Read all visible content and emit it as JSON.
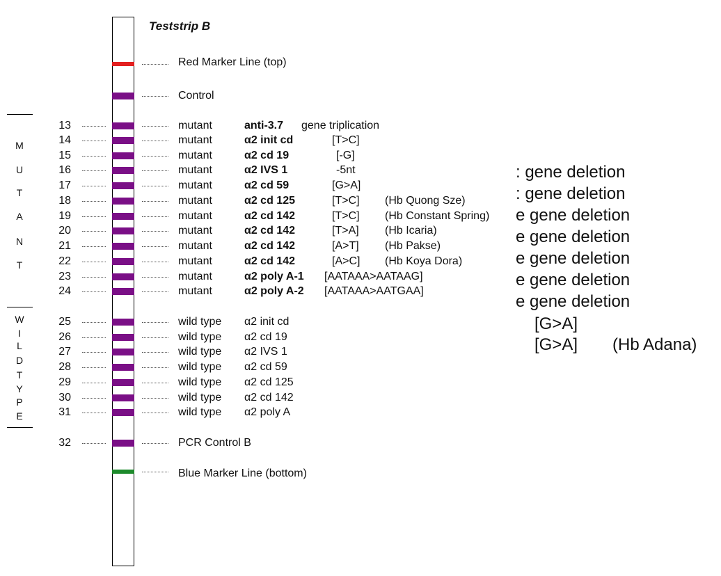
{
  "title": "Teststrip B",
  "colors": {
    "marker_red": "#e32020",
    "band_purple": "#7a0f86",
    "marker_green": "#1d8a2b"
  },
  "side": {
    "mutant_letters": [
      "M",
      "U",
      "T",
      "A",
      "N",
      "T"
    ],
    "wildtype_letters": [
      "W",
      "I",
      "L",
      "D",
      "T",
      "Y",
      "P",
      "E"
    ]
  },
  "marker_top": "Red Marker Line (top)",
  "control": "Control",
  "marker_bottom": "Blue Marker Line (bottom)",
  "mutants": [
    {
      "num": "13",
      "type": "mutant",
      "name": "anti-3.7",
      "change": "gene triplication",
      "hb": ""
    },
    {
      "num": "14",
      "type": "mutant",
      "name": "α2 init cd",
      "change": "[T>C]",
      "hb": ""
    },
    {
      "num": "15",
      "type": "mutant",
      "name": "α2 cd 19",
      "change": "[-G]",
      "hb": ""
    },
    {
      "num": "16",
      "type": "mutant",
      "name": "α2 IVS 1",
      "change": "-5nt",
      "hb": ""
    },
    {
      "num": "17",
      "type": "mutant",
      "name": "α2 cd 59",
      "change": "[G>A]",
      "hb": ""
    },
    {
      "num": "18",
      "type": "mutant",
      "name": "α2 cd 125",
      "change": "[T>C]",
      "hb": "(Hb Quong Sze)"
    },
    {
      "num": "19",
      "type": "mutant",
      "name": "α2 cd 142",
      "change": "[T>C]",
      "hb": "(Hb Constant Spring)"
    },
    {
      "num": "20",
      "type": "mutant",
      "name": "α2 cd 142",
      "change": "[T>A]",
      "hb": "(Hb Icaria)"
    },
    {
      "num": "21",
      "type": "mutant",
      "name": "α2 cd 142",
      "change": "[A>T]",
      "hb": "(Hb Pakse)"
    },
    {
      "num": "22",
      "type": "mutant",
      "name": "α2 cd 142",
      "change": "[A>C]",
      "hb": "(Hb Koya Dora)"
    },
    {
      "num": "23",
      "type": "mutant",
      "name": "α2 poly A-1",
      "change": "[AATAAA>AATAAG]",
      "hb": ""
    },
    {
      "num": "24",
      "type": "mutant",
      "name": "α2 poly A-2",
      "change": "[AATAAA>AATGAA]",
      "hb": ""
    }
  ],
  "wildtypes": [
    {
      "num": "25",
      "type": "wild type",
      "name": "α2 init cd"
    },
    {
      "num": "26",
      "type": "wild type",
      "name": "α2 cd 19"
    },
    {
      "num": "27",
      "type": "wild type",
      "name": "α2 IVS 1"
    },
    {
      "num": "28",
      "type": "wild type",
      "name": "α2 cd 59"
    },
    {
      "num": "29",
      "type": "wild type",
      "name": "α2 cd 125"
    },
    {
      "num": "30",
      "type": "wild type",
      "name": "α2 cd 142"
    },
    {
      "num": "31",
      "type": "wild type",
      "name": "α2 poly A"
    }
  ],
  "pcr": {
    "num": "32",
    "label": "PCR Control B"
  },
  "overflow": {
    "deletions": [
      ": gene deletion",
      ": gene deletion",
      "e gene deletion",
      "e gene deletion",
      "e gene deletion",
      "e gene deletion",
      "e gene deletion"
    ],
    "line1_change": "[G>A]",
    "line2_change": "[G>A]",
    "line2_hb": "(Hb Adana)"
  }
}
